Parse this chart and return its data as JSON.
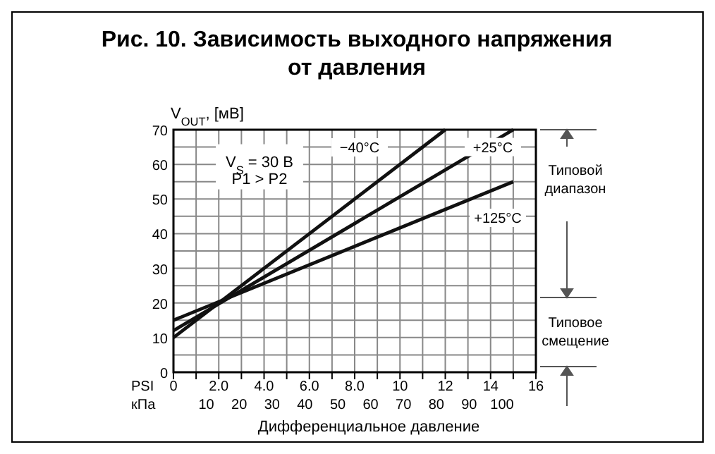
{
  "chart_data": {
    "type": "line",
    "title": "Рис. 10. Зависимость выходного напряжения от давления",
    "xlabel": "Дифференциальное давление",
    "ylabel": "V$_{OUT}$, [мВ]",
    "series": [
      {
        "name": "−40°C",
        "color": "#111111",
        "x": [
          0,
          12
        ],
        "values": [
          10,
          70
        ]
      },
      {
        "name": "+25°C",
        "color": "#111111",
        "x": [
          0,
          15
        ],
        "values": [
          12,
          70
        ]
      },
      {
        "name": "+125°C",
        "color": "#111111",
        "x": [
          0,
          15
        ],
        "values": [
          15,
          55
        ]
      }
    ],
    "xlim": [
      0,
      16
    ],
    "xticks": [
      0,
      {
        "value": 1,
        "label": null
      },
      {
        "value": 2,
        "label": "2.0"
      },
      {
        "value": 3,
        "label": null
      },
      {
        "value": 4,
        "label": "4.0"
      },
      {
        "value": 5,
        "label": null
      },
      {
        "value": 6,
        "label": "6.0"
      },
      {
        "value": 7,
        "label": null
      },
      {
        "value": 8,
        "label": "8.0"
      },
      {
        "value": 9,
        "label": null
      },
      10,
      {
        "value": 11,
        "label": null
      },
      12,
      {
        "value": 13,
        "label": null
      },
      14,
      {
        "value": 15,
        "label": null
      },
      16
    ],
    "x2lim": [
      0,
      110.3
    ],
    "x2ticks": [
      10,
      20,
      30,
      40,
      50,
      60,
      70,
      80,
      90,
      100
    ],
    "ylim": [
      0,
      70
    ],
    "yticks": [
      0,
      {
        "value": 5,
        "label": null
      },
      10,
      {
        "value": 15,
        "label": null
      },
      20,
      {
        "value": 25,
        "label": null
      },
      30,
      {
        "value": 35,
        "label": null
      },
      40,
      {
        "value": 45,
        "label": null
      },
      50,
      {
        "value": 55,
        "label": null
      },
      60,
      {
        "value": 65,
        "label": null
      },
      70
    ],
    "grid": true,
    "line_style": "solid",
    "annotations": [
      "V$_{S}$ = 30 В",
      "P1 > P2",
      "PSI",
      "кПа",
      "Типовой диапазон",
      "Типовое смещение"
    ]
  }
}
